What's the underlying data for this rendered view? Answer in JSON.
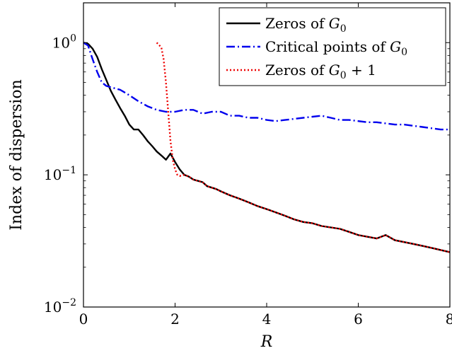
{
  "chart_data": {
    "type": "line",
    "title": "",
    "xlabel": "R",
    "ylabel": "Index of dispersion",
    "x_scale": "linear",
    "y_scale": "log",
    "xlim": [
      0,
      8
    ],
    "ylim": [
      0.01,
      2.0
    ],
    "x_ticks": [
      {
        "value": 0,
        "label": "0"
      },
      {
        "value": 2,
        "label": "2"
      },
      {
        "value": 4,
        "label": "4"
      },
      {
        "value": 6,
        "label": "6"
      },
      {
        "value": 8,
        "label": "8"
      }
    ],
    "y_ticks": [
      {
        "value": 0.01,
        "base": "10",
        "exp": "−2"
      },
      {
        "value": 0.1,
        "base": "10",
        "exp": "−1"
      },
      {
        "value": 1,
        "base": "10",
        "exp": "0"
      }
    ],
    "grid": false,
    "legend_position": "top-right",
    "series": [
      {
        "name": "Zeros of G0",
        "legend_parts": [
          {
            "t": "Zeros of "
          },
          {
            "t": "G",
            "italic": true
          },
          {
            "t": "0",
            "sub": true
          }
        ],
        "color": "#000000",
        "style": "solid",
        "x": [
          0,
          0.1,
          0.2,
          0.3,
          0.4,
          0.5,
          0.6,
          0.7,
          0.8,
          0.9,
          1.0,
          1.1,
          1.2,
          1.3,
          1.4,
          1.5,
          1.6,
          1.7,
          1.8,
          1.9,
          2.0,
          2.1,
          2.2,
          2.3,
          2.4,
          2.5,
          2.6,
          2.7,
          2.8,
          2.9,
          3.0,
          3.2,
          3.4,
          3.6,
          3.8,
          4.0,
          4.2,
          4.4,
          4.6,
          4.8,
          5.0,
          5.2,
          5.4,
          5.6,
          5.8,
          6.0,
          6.2,
          6.4,
          6.6,
          6.8,
          7.0,
          7.2,
          7.4,
          7.6,
          7.8,
          8.0
        ],
        "y": [
          1.0,
          0.98,
          0.9,
          0.78,
          0.63,
          0.52,
          0.43,
          0.37,
          0.32,
          0.28,
          0.24,
          0.22,
          0.22,
          0.2,
          0.18,
          0.165,
          0.15,
          0.14,
          0.13,
          0.145,
          0.125,
          0.11,
          0.1,
          0.097,
          0.092,
          0.09,
          0.088,
          0.082,
          0.08,
          0.078,
          0.075,
          0.07,
          0.066,
          0.062,
          0.058,
          0.055,
          0.052,
          0.049,
          0.046,
          0.044,
          0.043,
          0.041,
          0.04,
          0.039,
          0.037,
          0.035,
          0.034,
          0.033,
          0.035,
          0.032,
          0.031,
          0.03,
          0.029,
          0.028,
          0.027,
          0.026
        ]
      },
      {
        "name": "Critical points of G0",
        "legend_parts": [
          {
            "t": "Critical points of "
          },
          {
            "t": "G",
            "italic": true
          },
          {
            "t": "0",
            "sub": true
          }
        ],
        "color": "#0000ee",
        "style": "dashdot",
        "x": [
          0,
          0.1,
          0.2,
          0.3,
          0.4,
          0.5,
          0.6,
          0.7,
          0.8,
          0.9,
          1.0,
          1.2,
          1.4,
          1.6,
          1.8,
          2.0,
          2.2,
          2.4,
          2.6,
          2.8,
          3.0,
          3.2,
          3.4,
          3.6,
          3.8,
          4.0,
          4.2,
          4.4,
          4.6,
          4.8,
          5.0,
          5.2,
          5.4,
          5.6,
          5.8,
          6.0,
          6.2,
          6.4,
          6.6,
          6.8,
          7.0,
          7.2,
          7.4,
          7.6,
          7.8,
          8.0
        ],
        "y": [
          1.0,
          0.95,
          0.75,
          0.6,
          0.5,
          0.47,
          0.46,
          0.45,
          0.44,
          0.42,
          0.4,
          0.36,
          0.33,
          0.31,
          0.3,
          0.3,
          0.31,
          0.31,
          0.29,
          0.3,
          0.3,
          0.28,
          0.28,
          0.27,
          0.27,
          0.26,
          0.255,
          0.26,
          0.265,
          0.27,
          0.275,
          0.28,
          0.27,
          0.26,
          0.26,
          0.255,
          0.25,
          0.25,
          0.245,
          0.24,
          0.24,
          0.235,
          0.23,
          0.225,
          0.22,
          0.22
        ]
      },
      {
        "name": "Zeros of G0 + 1",
        "legend_parts": [
          {
            "t": "Zeros of "
          },
          {
            "t": "G",
            "italic": true
          },
          {
            "t": "0",
            "sub": true
          },
          {
            "t": " + 1"
          }
        ],
        "color": "#ee0000",
        "style": "dotted",
        "x": [
          1.6,
          1.7,
          1.75,
          1.8,
          1.85,
          1.9,
          1.95,
          2.0,
          2.05,
          2.1,
          2.2,
          2.3,
          2.4,
          2.5,
          2.6,
          2.7,
          2.8,
          2.9,
          3.0,
          3.2,
          3.4,
          3.6,
          3.8,
          4.0,
          4.2,
          4.4,
          4.6,
          4.8,
          5.0,
          5.2,
          5.4,
          5.6,
          5.8,
          6.0,
          6.2,
          6.4,
          6.6,
          6.8,
          7.0,
          7.2,
          7.4,
          7.6,
          7.8,
          8.0
        ],
        "y": [
          1.0,
          0.92,
          0.75,
          0.5,
          0.3,
          0.18,
          0.13,
          0.11,
          0.1,
          0.098,
          0.1,
          0.097,
          0.092,
          0.09,
          0.088,
          0.082,
          0.08,
          0.078,
          0.075,
          0.07,
          0.066,
          0.062,
          0.058,
          0.055,
          0.052,
          0.049,
          0.046,
          0.044,
          0.043,
          0.041,
          0.04,
          0.039,
          0.037,
          0.035,
          0.034,
          0.033,
          0.035,
          0.032,
          0.031,
          0.03,
          0.029,
          0.028,
          0.027,
          0.026
        ]
      }
    ]
  }
}
